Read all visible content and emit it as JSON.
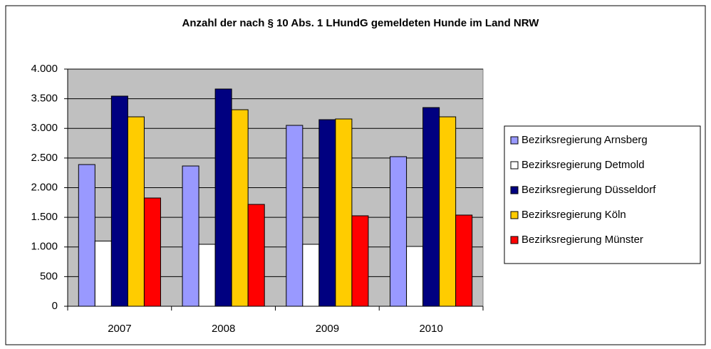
{
  "chart_data": {
    "type": "bar",
    "title": "Anzahl der nach § 10 Abs. 1 LHundG gemeldeten  Hunde im Land NRW",
    "categories": [
      "2007",
      "2008",
      "2009",
      "2010"
    ],
    "series": [
      {
        "name": "Bezirksregierung Arnsberg",
        "color": "#9999ff",
        "values": [
          2390,
          2366,
          3051,
          2523
        ]
      },
      {
        "name": "Bezirksregierung Detmold",
        "color": "#ffffff",
        "values": [
          1100,
          1045,
          1045,
          1009
        ]
      },
      {
        "name": "Bezirksregierung Düsseldorf",
        "color": "#000080",
        "values": [
          3544,
          3664,
          3147,
          3351
        ]
      },
      {
        "name": "Bezirksregierung Köln",
        "color": "#ffcc00",
        "values": [
          3195,
          3315,
          3159,
          3195
        ]
      },
      {
        "name": "Bezirksregierung Münster",
        "color": "#ff0000",
        "values": [
          1826,
          1718,
          1526,
          1538
        ]
      }
    ],
    "ylim": [
      0,
      4000
    ],
    "yticks": [
      0,
      {
        "value": 500,
        "label": "500"
      },
      {
        "value": 1000,
        "label": "1.000"
      },
      {
        "value": 1500,
        "label": "1.500"
      },
      {
        "value": 2000,
        "label": "2.000"
      },
      {
        "value": 2500,
        "label": "2.500"
      },
      {
        "value": 3000,
        "label": "3.000"
      },
      {
        "value": 3500,
        "label": "3.500"
      },
      {
        "value": 4000,
        "label": "4.000"
      }
    ],
    "grid": true,
    "legend": "right"
  }
}
